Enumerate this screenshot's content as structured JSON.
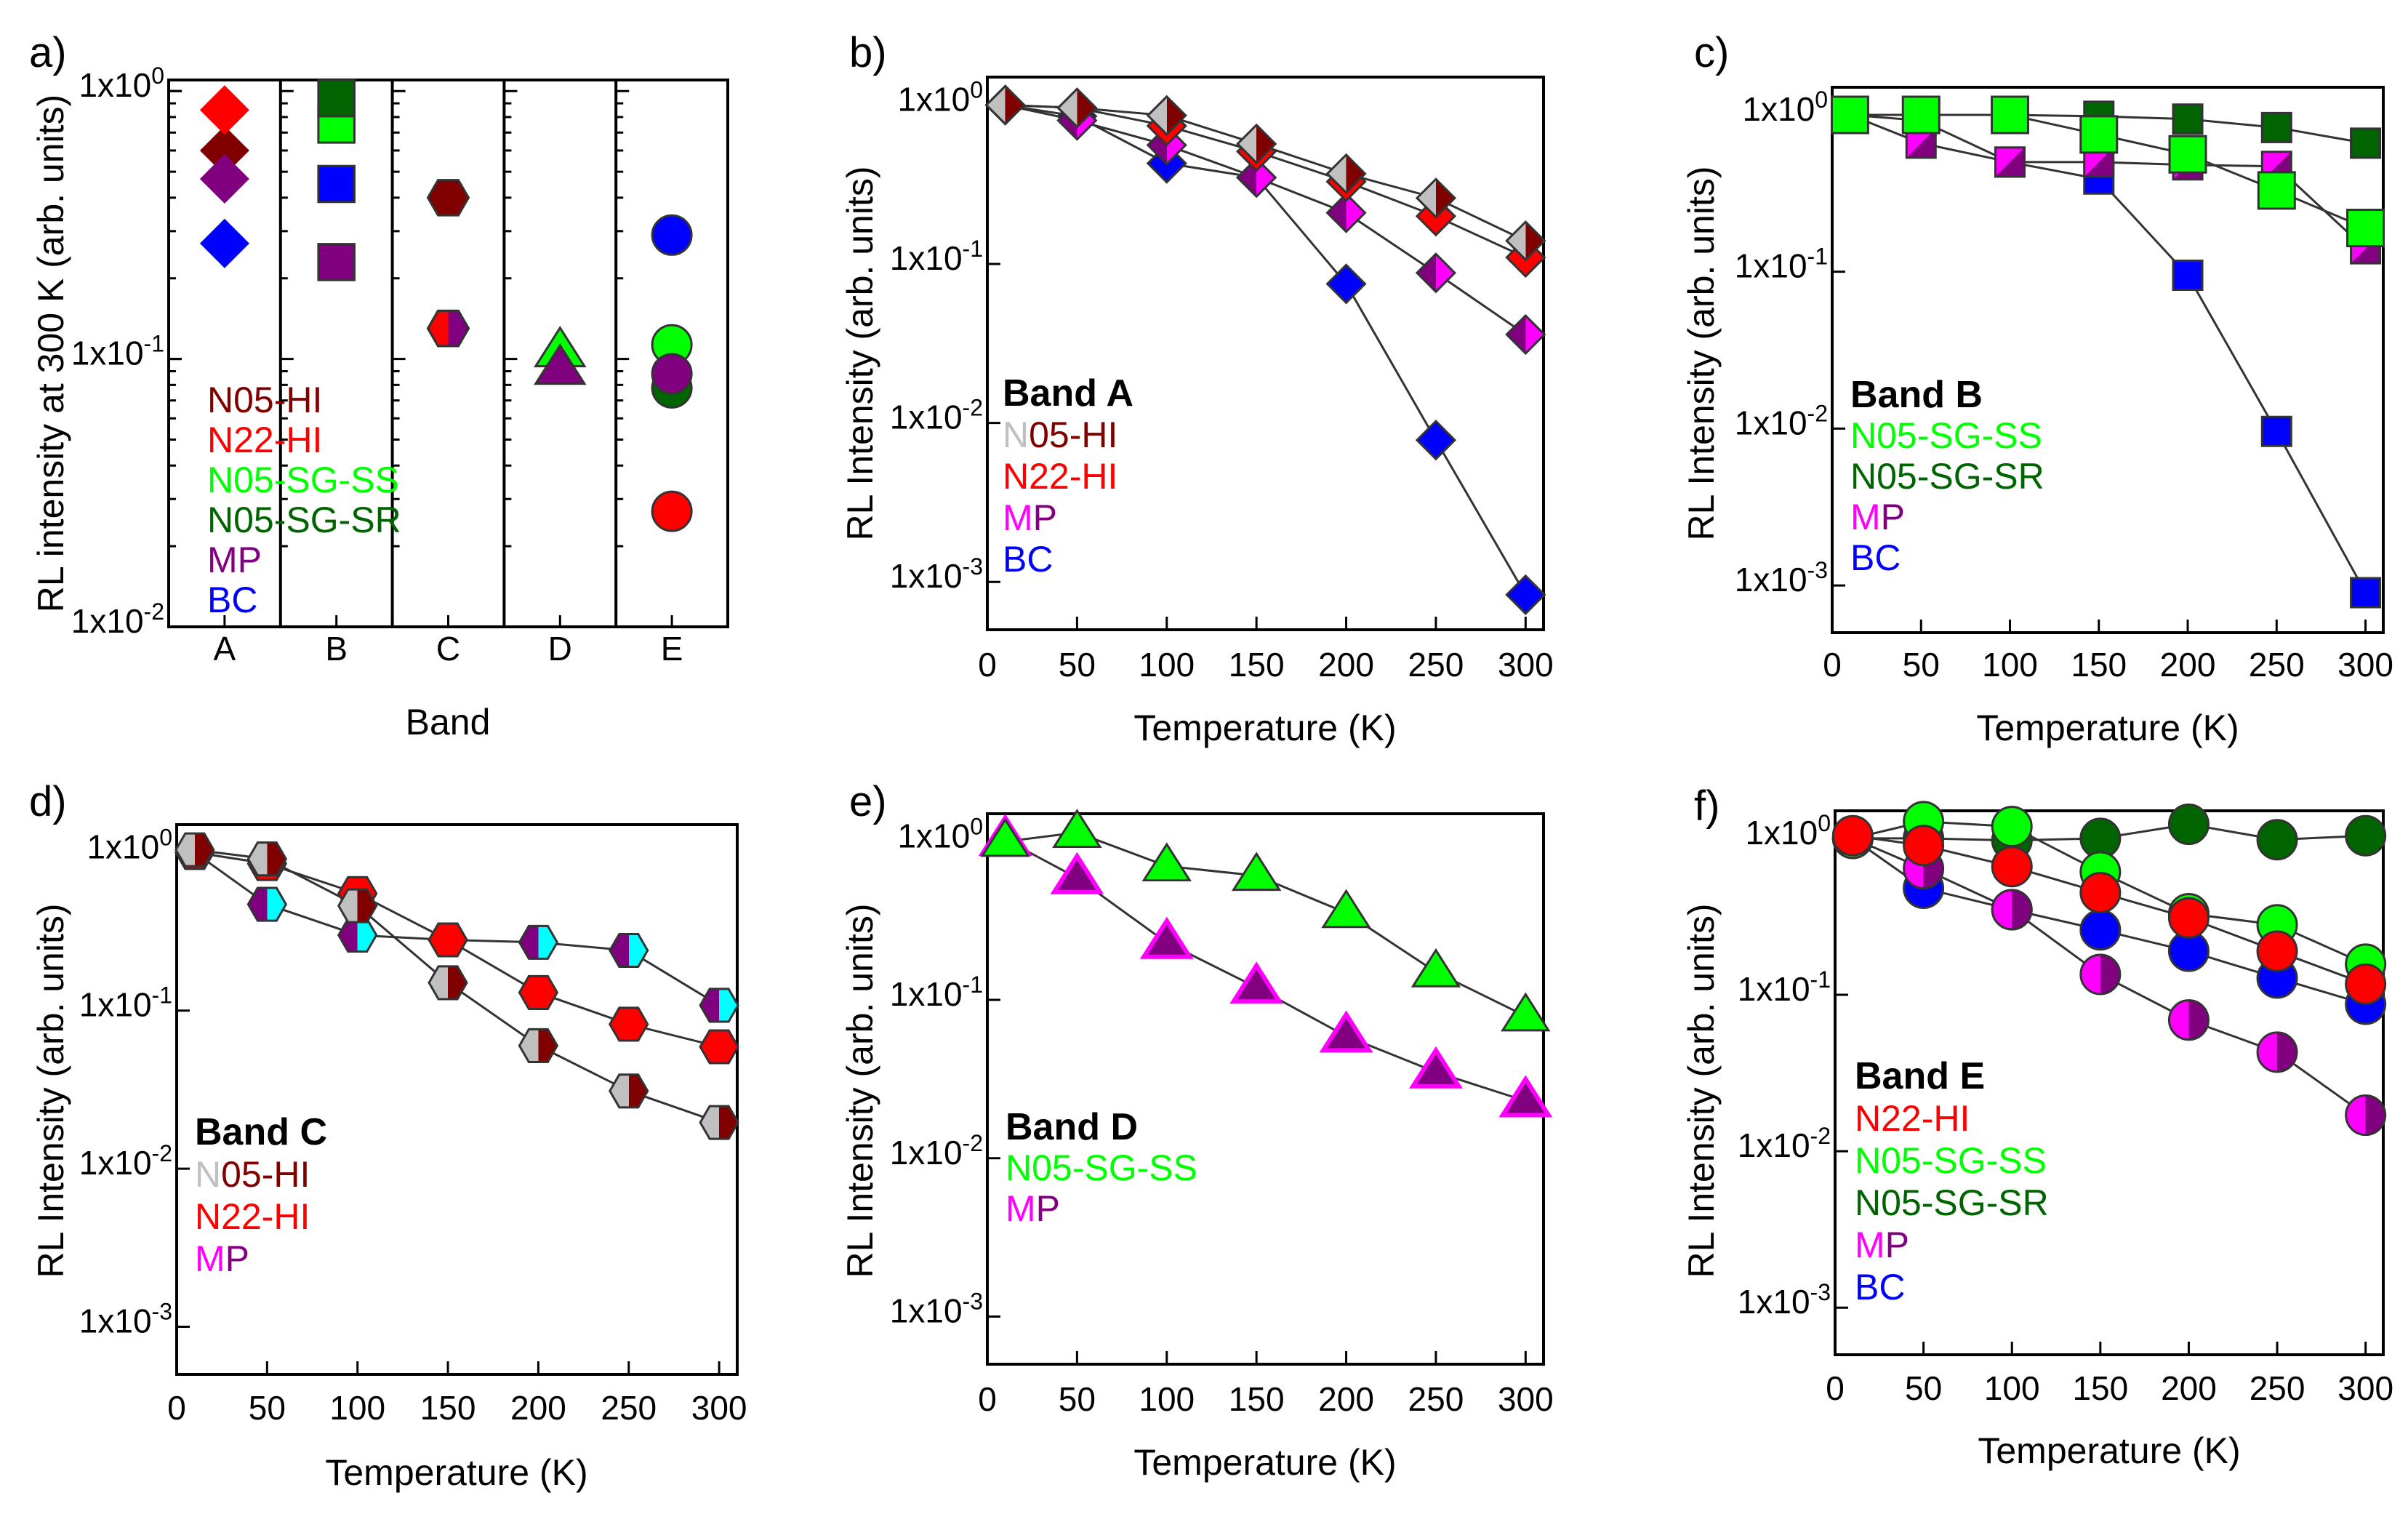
{
  "colors": {
    "N05-HI_gray": "#c0c0c0",
    "N05-HI_darkred": "#800000",
    "N22-HI": "#ff0000",
    "N05-SG-SS": "#00ff00",
    "N05-SG-SR": "#006400",
    "MP_magenta": "#ff00ff",
    "MP_purple": "#800080",
    "BC": "#0000ff",
    "cyan": "#00ffff",
    "line": "#333333"
  },
  "y_tick_labels_ab": [
    {
      "mantissa": "1x10",
      "exponent": "0"
    },
    {
      "mantissa": "1x10",
      "exponent": "-1"
    },
    {
      "mantissa": "1x10",
      "exponent": "-2"
    },
    {
      "mantissa": "1x10",
      "exponent": "-3"
    }
  ],
  "chart_data": [
    {
      "panel": "a)",
      "type": "scatter",
      "ylabel": "RL intensity at 300 K (arb. units)",
      "xlabel": "Band",
      "categories": [
        "A",
        "B",
        "C",
        "D",
        "E"
      ],
      "category_markers": [
        "diamond",
        "square",
        "hexagon",
        "triangle",
        "circle"
      ],
      "yscale": "log",
      "ylim": [
        0.01,
        1.1
      ],
      "yticks": [
        1,
        0.1,
        0.01
      ],
      "legend": [
        {
          "text": "N05-HI",
          "color": "#800000"
        },
        {
          "text": "N22-HI",
          "color": "#ff0000"
        },
        {
          "text": "N05-SG-SS",
          "color": "#00ff00"
        },
        {
          "text": "N05-SG-SR",
          "color": "#006400"
        },
        {
          "text": "MP",
          "color": "#800080"
        },
        {
          "text": "BC",
          "color": "#0000ff"
        }
      ],
      "series": [
        {
          "name": "N05-HI",
          "color": "#800000",
          "values": [
            0.6,
            null,
            0.4,
            null,
            null
          ]
        },
        {
          "name": "N22-HI",
          "color": "#ff0000",
          "values": [
            0.85,
            null,
            0.13,
            null,
            0.027
          ]
        },
        {
          "name": "N05-SG-SS",
          "color": "#00ff00",
          "values": [
            null,
            0.75,
            null,
            0.107,
            0.113
          ]
        },
        {
          "name": "N05-SG-SR",
          "color": "#006400",
          "values": [
            null,
            0.94,
            null,
            null,
            0.078
          ]
        },
        {
          "name": "MP",
          "color": "#800080",
          "values": [
            0.47,
            0.23,
            0.13,
            0.092,
            0.088
          ]
        },
        {
          "name": "BC",
          "color": "#0000ff",
          "values": [
            0.27,
            0.45,
            null,
            null,
            0.29
          ]
        }
      ]
    },
    {
      "panel": "b)",
      "type": "line",
      "title": "Band A",
      "xlabel": "Temperature (K)",
      "ylabel": "RL Intensity (arb. units)",
      "marker": "diamond",
      "x": [
        10,
        50,
        100,
        150,
        200,
        250,
        300
      ],
      "xticks": [
        0,
        50,
        100,
        150,
        200,
        250,
        300
      ],
      "xlim": [
        0,
        310
      ],
      "yscale": "log",
      "ylim": [
        0.0005,
        1.5
      ],
      "yticks": [
        1,
        0.1,
        0.01,
        0.001
      ],
      "legend": [
        {
          "text": "N05-HI",
          "color": "#c0c0c0",
          "color2": "#800000"
        },
        {
          "text": "N22-HI",
          "color": "#ff0000"
        },
        {
          "text": "MP",
          "color": "#ff00ff",
          "color2": "#800080"
        },
        {
          "text": "BC",
          "color": "#0000ff"
        }
      ],
      "series": [
        {
          "name": "N05-HI",
          "fill": "#c0c0c0",
          "fill2": "#800000",
          "split": "v",
          "values": [
            1.0,
            0.96,
            0.86,
            0.57,
            0.37,
            0.26,
            0.14
          ]
        },
        {
          "name": "N22-HI",
          "fill": "#ff0000",
          "values": [
            1.0,
            0.96,
            0.74,
            0.51,
            0.33,
            0.2,
            0.11
          ]
        },
        {
          "name": "MP",
          "fill": "#800080",
          "fill2": "#ff00ff",
          "split": "v",
          "values": [
            1.0,
            0.8,
            0.56,
            0.35,
            0.21,
            0.088,
            0.036
          ]
        },
        {
          "name": "BC",
          "fill": "#0000ff",
          "values": [
            1.0,
            0.85,
            0.43,
            0.35,
            0.075,
            0.0078,
            0.00083
          ]
        }
      ]
    },
    {
      "panel": "c)",
      "type": "line",
      "title": "Band B",
      "xlabel": "Temperature (K)",
      "ylabel": "RL Intensity (arb. units)",
      "marker": "square",
      "x": [
        10,
        50,
        100,
        150,
        200,
        250,
        300
      ],
      "xticks": [
        0,
        50,
        100,
        150,
        200,
        250,
        300
      ],
      "xlim": [
        0,
        310
      ],
      "yscale": "log",
      "ylim": [
        0.0005,
        1.5
      ],
      "yticks": [
        1,
        0.1,
        0.01,
        0.001
      ],
      "legend": [
        {
          "text": "N05-SG-SS",
          "color": "#00ff00"
        },
        {
          "text": "N05-SG-SR",
          "color": "#006400"
        },
        {
          "text": "MP",
          "color": "#ff00ff",
          "color2": "#800080"
        },
        {
          "text": "BC",
          "color": "#0000ff"
        }
      ],
      "series": [
        {
          "name": "N05-SG-SS",
          "fill": "#00ff00",
          "big": true,
          "values": [
            1.0,
            1.0,
            1.0,
            0.75,
            0.56,
            0.33,
            0.19
          ]
        },
        {
          "name": "N05-SG-SR",
          "fill": "#006400",
          "values": [
            1.0,
            1.0,
            1.0,
            0.98,
            0.94,
            0.83,
            0.66
          ]
        },
        {
          "name": "MP",
          "fill": "#ff00ff",
          "fill2": "#800080",
          "split": "d",
          "values": [
            1.0,
            0.66,
            0.5,
            0.5,
            0.48,
            0.47,
            0.14
          ]
        },
        {
          "name": "BC",
          "fill": "#0000ff",
          "values": [
            1.0,
            0.92,
            0.5,
            0.39,
            0.095,
            0.0096,
            0.0009
          ]
        }
      ]
    },
    {
      "panel": "d)",
      "type": "line",
      "title": "Band C",
      "xlabel": "Temperature (K)",
      "ylabel": "RL Intensity (arb. units)",
      "marker": "hexagon",
      "x": [
        10,
        50,
        100,
        150,
        200,
        250,
        300
      ],
      "xticks": [
        0,
        50,
        100,
        150,
        200,
        250,
        300
      ],
      "xlim": [
        0,
        310
      ],
      "yscale": "log",
      "ylim": [
        0.0005,
        1.5
      ],
      "yticks": [
        1,
        0.1,
        0.01,
        0.001
      ],
      "legend": [
        {
          "text": "N05-HI",
          "color": "#c0c0c0",
          "color2": "#800000"
        },
        {
          "text": "N22-HI",
          "color": "#ff0000"
        },
        {
          "text": "MP",
          "color": "#ff00ff",
          "color2": "#800080"
        }
      ],
      "series": [
        {
          "name": "N05-HI",
          "fill": "#c0c0c0",
          "fill2": "#800000",
          "split": "v",
          "values": [
            1.04,
            0.91,
            0.46,
            0.15,
            0.06,
            0.031,
            0.0196
          ]
        },
        {
          "name": "N22-HI",
          "fill": "#ff0000",
          "values": [
            1.0,
            0.85,
            0.55,
            0.28,
            0.13,
            0.082,
            0.059
          ]
        },
        {
          "name": "MP",
          "fill": "#800080",
          "fill2": "#00ffff",
          "split": "v",
          "values": [
            1.0,
            0.47,
            0.3,
            0.28,
            0.27,
            0.24,
            0.108
          ]
        }
      ]
    },
    {
      "panel": "e)",
      "type": "line",
      "title": "Band D",
      "xlabel": "Temperature (K)",
      "ylabel": "RL Intensity (arb. units)",
      "marker": "triangle",
      "x": [
        10,
        50,
        100,
        150,
        200,
        250,
        300
      ],
      "xticks": [
        0,
        50,
        100,
        150,
        200,
        250,
        300
      ],
      "xlim": [
        0,
        310
      ],
      "yscale": "log",
      "ylim": [
        0.0005,
        1.5
      ],
      "yticks": [
        1,
        0.1,
        0.01,
        0.001
      ],
      "legend": [
        {
          "text": "N05-SG-SS",
          "color": "#00ff00"
        },
        {
          "text": "MP",
          "color": "#ff00ff",
          "color2": "#800080"
        }
      ],
      "series": [
        {
          "name": "N05-SG-SS",
          "fill": "#00ff00",
          "values": [
            1.0,
            1.14,
            0.7,
            0.61,
            0.355,
            0.15,
            0.079
          ]
        },
        {
          "name": "MP",
          "fill": "#800080",
          "stroke": "#ff00ff",
          "values": [
            1.03,
            0.59,
            0.23,
            0.12,
            0.059,
            0.035,
            0.023
          ]
        }
      ]
    },
    {
      "panel": "f)",
      "type": "line",
      "title": "Band E",
      "xlabel": "Temperature (K)",
      "ylabel": "RL Intensity (arb. units)",
      "marker": "circle",
      "x": [
        10,
        50,
        100,
        150,
        200,
        250,
        300
      ],
      "xticks": [
        0,
        50,
        100,
        150,
        200,
        250,
        300
      ],
      "xlim": [
        0,
        310
      ],
      "yscale": "log",
      "ylim": [
        0.0005,
        1.5
      ],
      "yticks": [
        1,
        0.1,
        0.01,
        0.001
      ],
      "legend": [
        {
          "text": "N22-HI",
          "color": "#ff0000"
        },
        {
          "text": "N05-SG-SS",
          "color": "#00ff00"
        },
        {
          "text": "N05-SG-SR",
          "color": "#006400"
        },
        {
          "text": "MP",
          "color": "#ff00ff",
          "color2": "#800080"
        },
        {
          "text": "BC",
          "color": "#0000ff"
        }
      ],
      "series": [
        {
          "name": "N22-HI",
          "fill": "#ff0000",
          "values": [
            1.04,
            0.9,
            0.66,
            0.45,
            0.31,
            0.19,
            0.117
          ]
        },
        {
          "name": "N05-SG-SS",
          "fill": "#00ff00",
          "values": [
            1.0,
            1.28,
            1.19,
            0.61,
            0.33,
            0.28,
            0.157
          ]
        },
        {
          "name": "N05-SG-SR",
          "fill": "#006400",
          "values": [
            1.0,
            1.0,
            0.97,
            1.0,
            1.23,
            0.98,
            1.04
          ]
        },
        {
          "name": "MP",
          "fill": "#ff00ff",
          "fill2": "#800080",
          "split": "v",
          "values": [
            1.0,
            0.64,
            0.35,
            0.135,
            0.069,
            0.043,
            0.017
          ]
        },
        {
          "name": "BC",
          "fill": "#0000ff",
          "values": [
            1.0,
            0.48,
            0.35,
            0.26,
            0.19,
            0.128,
            0.087
          ]
        }
      ]
    }
  ]
}
